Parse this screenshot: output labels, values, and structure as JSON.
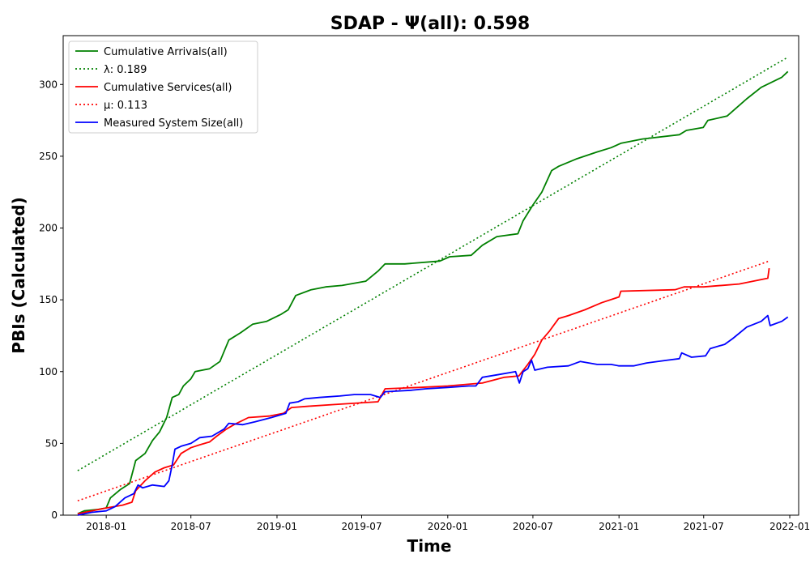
{
  "chart_data": {
    "type": "line",
    "title": "SDAP -  Ψ(all): 0.598",
    "xlabel": "Time",
    "ylabel": "PBIs (Calculated)",
    "xlim": [
      "2017-10-01",
      "2022-01-20"
    ],
    "ylim": [
      0,
      334
    ],
    "x_ticks": [
      "2018-01",
      "2018-07",
      "2019-01",
      "2019-07",
      "2020-01",
      "2020-07",
      "2021-01",
      "2021-07",
      "2022-01"
    ],
    "y_ticks": [
      0,
      50,
      100,
      150,
      200,
      250,
      300
    ],
    "grid": false,
    "legend_position": "top-left",
    "series": [
      {
        "name": "Cumulative Arrivals(all)",
        "color": "#008000",
        "style": "solid",
        "points": [
          [
            "2017-11-01",
            1
          ],
          [
            "2017-11-15",
            3
          ],
          [
            "2017-12-15",
            4
          ],
          [
            "2018-01-01",
            5
          ],
          [
            "2018-01-10",
            12
          ],
          [
            "2018-02-01",
            18
          ],
          [
            "2018-02-20",
            22
          ],
          [
            "2018-03-05",
            38
          ],
          [
            "2018-03-25",
            43
          ],
          [
            "2018-04-10",
            52
          ],
          [
            "2018-04-25",
            58
          ],
          [
            "2018-05-10",
            68
          ],
          [
            "2018-05-22",
            82
          ],
          [
            "2018-06-05",
            84
          ],
          [
            "2018-06-15",
            90
          ],
          [
            "2018-07-01",
            95
          ],
          [
            "2018-07-10",
            100
          ],
          [
            "2018-08-10",
            102
          ],
          [
            "2018-09-01",
            107
          ],
          [
            "2018-09-20",
            122
          ],
          [
            "2018-10-15",
            127
          ],
          [
            "2018-11-10",
            133
          ],
          [
            "2018-12-10",
            135
          ],
          [
            "2019-01-10",
            140
          ],
          [
            "2019-01-25",
            143
          ],
          [
            "2019-02-10",
            153
          ],
          [
            "2019-03-15",
            157
          ],
          [
            "2019-04-15",
            159
          ],
          [
            "2019-05-20",
            160
          ],
          [
            "2019-07-10",
            163
          ],
          [
            "2019-08-05",
            170
          ],
          [
            "2019-08-20",
            175
          ],
          [
            "2019-10-01",
            175
          ],
          [
            "2019-12-15",
            177
          ],
          [
            "2020-01-05",
            180
          ],
          [
            "2020-02-20",
            181
          ],
          [
            "2020-03-15",
            188
          ],
          [
            "2020-04-15",
            194
          ],
          [
            "2020-05-30",
            196
          ],
          [
            "2020-06-10",
            205
          ],
          [
            "2020-07-01",
            216
          ],
          [
            "2020-07-20",
            225
          ],
          [
            "2020-08-10",
            240
          ],
          [
            "2020-08-25",
            243
          ],
          [
            "2020-10-01",
            248
          ],
          [
            "2020-11-15",
            253
          ],
          [
            "2020-12-15",
            256
          ],
          [
            "2021-01-05",
            259
          ],
          [
            "2021-02-20",
            262
          ],
          [
            "2021-05-10",
            265
          ],
          [
            "2021-05-25",
            268
          ],
          [
            "2021-06-30",
            270
          ],
          [
            "2021-07-10",
            275
          ],
          [
            "2021-08-20",
            278
          ],
          [
            "2021-10-01",
            290
          ],
          [
            "2021-11-01",
            298
          ],
          [
            "2021-12-15",
            305
          ],
          [
            "2021-12-28",
            309
          ]
        ]
      },
      {
        "name": "λ: 0.189",
        "color": "#008000",
        "style": "dotted",
        "points": [
          [
            "2017-11-01",
            31
          ],
          [
            "2021-12-28",
            319
          ]
        ]
      },
      {
        "name": "Cumulative Services(all)",
        "color": "#ff0000",
        "style": "solid",
        "points": [
          [
            "2017-11-01",
            1
          ],
          [
            "2017-12-01",
            3
          ],
          [
            "2018-01-01",
            5
          ],
          [
            "2018-02-05",
            7
          ],
          [
            "2018-02-25",
            9
          ],
          [
            "2018-03-05",
            17
          ],
          [
            "2018-03-25",
            24
          ],
          [
            "2018-04-15",
            30
          ],
          [
            "2018-05-05",
            33
          ],
          [
            "2018-05-25",
            35
          ],
          [
            "2018-06-10",
            43
          ],
          [
            "2018-07-01",
            47
          ],
          [
            "2018-07-20",
            49
          ],
          [
            "2018-08-10",
            51
          ],
          [
            "2018-08-25",
            55
          ],
          [
            "2018-09-15",
            60
          ],
          [
            "2018-10-01",
            63
          ],
          [
            "2018-11-01",
            68
          ],
          [
            "2018-12-15",
            69
          ],
          [
            "2019-01-15",
            71
          ],
          [
            "2019-02-01",
            75
          ],
          [
            "2019-03-15",
            76
          ],
          [
            "2019-05-01",
            77
          ],
          [
            "2019-08-05",
            79
          ],
          [
            "2019-08-20",
            88
          ],
          [
            "2019-11-01",
            89
          ],
          [
            "2020-01-01",
            90
          ],
          [
            "2020-03-15",
            92
          ],
          [
            "2020-05-01",
            96
          ],
          [
            "2020-06-01",
            97
          ],
          [
            "2020-06-20",
            105
          ],
          [
            "2020-07-05",
            112
          ],
          [
            "2020-07-20",
            122
          ],
          [
            "2020-08-05",
            128
          ],
          [
            "2020-08-25",
            137
          ],
          [
            "2020-09-15",
            139
          ],
          [
            "2020-10-20",
            143
          ],
          [
            "2020-11-25",
            148
          ],
          [
            "2021-01-01",
            152
          ],
          [
            "2021-01-05",
            156
          ],
          [
            "2021-05-01",
            157
          ],
          [
            "2021-05-20",
            159
          ],
          [
            "2021-07-01",
            159
          ],
          [
            "2021-09-15",
            161
          ],
          [
            "2021-11-15",
            165
          ],
          [
            "2021-11-18",
            172
          ]
        ]
      },
      {
        "name": "μ: 0.113",
        "color": "#ff0000",
        "style": "dotted",
        "points": [
          [
            "2017-11-01",
            10
          ],
          [
            "2021-11-18",
            177
          ]
        ]
      },
      {
        "name": "Measured System Size(all)",
        "color": "#0000ff",
        "style": "solid",
        "points": [
          [
            "2017-11-01",
            0
          ],
          [
            "2017-12-01",
            2
          ],
          [
            "2018-01-01",
            3
          ],
          [
            "2018-01-20",
            6
          ],
          [
            "2018-02-10",
            12
          ],
          [
            "2018-03-01",
            15
          ],
          [
            "2018-03-10",
            21
          ],
          [
            "2018-03-20",
            19
          ],
          [
            "2018-04-10",
            21
          ],
          [
            "2018-05-05",
            20
          ],
          [
            "2018-05-15",
            24
          ],
          [
            "2018-05-22",
            35
          ],
          [
            "2018-05-28",
            46
          ],
          [
            "2018-06-10",
            48
          ],
          [
            "2018-07-01",
            50
          ],
          [
            "2018-07-20",
            54
          ],
          [
            "2018-08-15",
            55
          ],
          [
            "2018-09-10",
            60
          ],
          [
            "2018-09-20",
            64
          ],
          [
            "2018-10-20",
            63
          ],
          [
            "2018-11-15",
            65
          ],
          [
            "2018-12-20",
            68
          ],
          [
            "2019-01-20",
            71
          ],
          [
            "2019-01-28",
            78
          ],
          [
            "2019-02-15",
            79
          ],
          [
            "2019-03-01",
            81
          ],
          [
            "2019-04-01",
            82
          ],
          [
            "2019-05-15",
            83
          ],
          [
            "2019-06-15",
            84
          ],
          [
            "2019-07-20",
            84
          ],
          [
            "2019-08-10",
            82
          ],
          [
            "2019-08-20",
            86
          ],
          [
            "2019-10-15",
            87
          ],
          [
            "2019-11-15",
            88
          ],
          [
            "2020-01-01",
            89
          ],
          [
            "2020-02-15",
            90
          ],
          [
            "2020-03-01",
            90
          ],
          [
            "2020-03-15",
            96
          ],
          [
            "2020-04-20",
            98
          ],
          [
            "2020-05-25",
            100
          ],
          [
            "2020-06-02",
            92
          ],
          [
            "2020-06-10",
            100
          ],
          [
            "2020-06-20",
            102
          ],
          [
            "2020-06-28",
            108
          ],
          [
            "2020-07-05",
            101
          ],
          [
            "2020-08-01",
            103
          ],
          [
            "2020-09-15",
            104
          ],
          [
            "2020-10-10",
            107
          ],
          [
            "2020-11-15",
            105
          ],
          [
            "2020-12-15",
            105
          ],
          [
            "2021-01-01",
            104
          ],
          [
            "2021-02-01",
            104
          ],
          [
            "2021-03-01",
            106
          ],
          [
            "2021-04-15",
            108
          ],
          [
            "2021-05-10",
            109
          ],
          [
            "2021-05-15",
            113
          ],
          [
            "2021-06-05",
            110
          ],
          [
            "2021-07-05",
            111
          ],
          [
            "2021-07-15",
            116
          ],
          [
            "2021-08-15",
            119
          ],
          [
            "2021-09-01",
            123
          ],
          [
            "2021-10-01",
            131
          ],
          [
            "2021-11-01",
            135
          ],
          [
            "2021-11-15",
            139
          ],
          [
            "2021-11-20",
            132
          ],
          [
            "2021-12-15",
            135
          ],
          [
            "2021-12-28",
            138
          ]
        ]
      }
    ]
  }
}
